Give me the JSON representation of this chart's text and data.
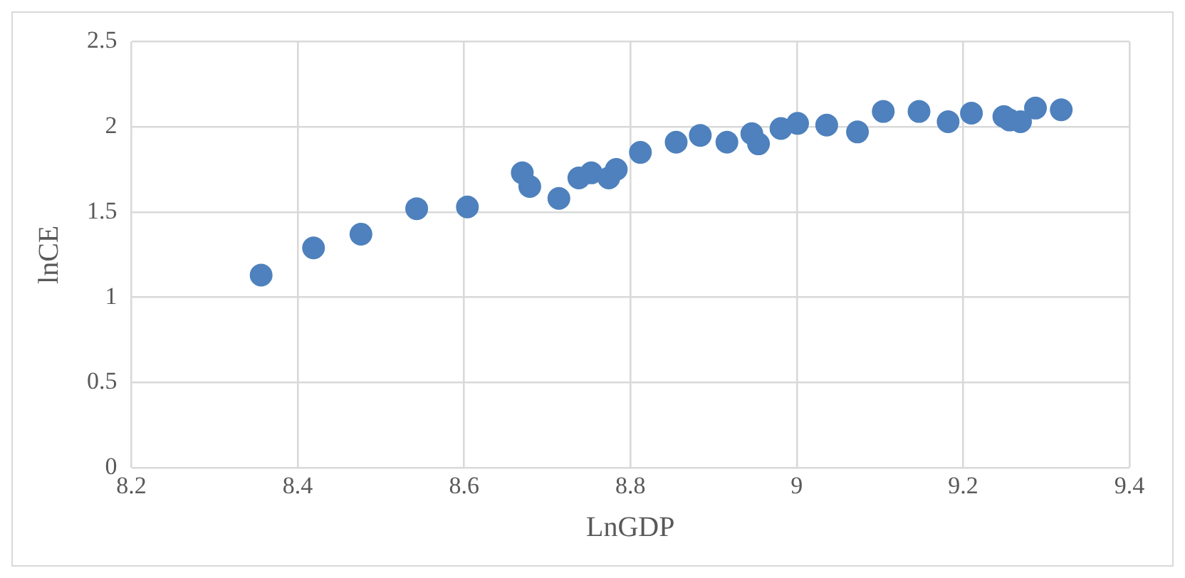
{
  "chart_data": {
    "type": "scatter",
    "xlabel": "LnGDP",
    "ylabel": "lnCE",
    "x": [
      8.356,
      8.419,
      8.476,
      8.543,
      8.604,
      8.67,
      8.679,
      8.714,
      8.738,
      8.753,
      8.774,
      8.783,
      8.812,
      8.855,
      8.884,
      8.916,
      8.946,
      8.954,
      8.981,
      9.001,
      9.036,
      9.073,
      9.104,
      9.147,
      9.182,
      9.21,
      9.249,
      9.256,
      9.269,
      9.287,
      9.318
    ],
    "series": [
      {
        "color": "#4e81bd",
        "values": [
          1.13,
          1.29,
          1.37,
          1.52,
          1.53,
          1.73,
          1.65,
          1.58,
          1.7,
          1.73,
          1.7,
          1.75,
          1.85,
          1.91,
          1.95,
          1.91,
          1.96,
          1.9,
          1.99,
          2.02,
          2.01,
          1.97,
          2.09,
          2.09,
          2.03,
          2.08,
          2.06,
          2.04,
          2.03,
          2.11,
          2.1
        ]
      }
    ],
    "xlim": [
      8.2,
      9.4
    ],
    "xticks": [
      8.2,
      8.4,
      8.6,
      8.8,
      9,
      9.2,
      9.4
    ],
    "ylim": [
      0,
      2.5
    ],
    "yticks": [
      0,
      0.5,
      1,
      1.5,
      2,
      2.5
    ],
    "grid": true,
    "legend": false,
    "marker": "circle"
  }
}
